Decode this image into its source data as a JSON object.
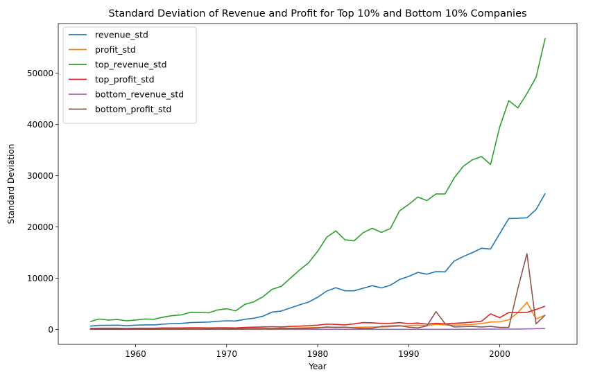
{
  "chart_data": {
    "type": "line",
    "title": "Standard Deviation of Revenue and Profit for Top 10% and Bottom 10% Companies",
    "xlabel": "Year",
    "ylabel": "Standard Deviation",
    "xlim": [
      1951.5,
      2008.5
    ],
    "ylim": [
      -2900,
      59700
    ],
    "xticks": [
      1960,
      1970,
      1980,
      1990,
      2000
    ],
    "yticks": [
      0,
      10000,
      20000,
      30000,
      40000,
      50000
    ],
    "grid": false,
    "legend_position": "top-left",
    "x": [
      1955,
      1956,
      1957,
      1958,
      1959,
      1960,
      1961,
      1962,
      1963,
      1964,
      1965,
      1966,
      1967,
      1968,
      1969,
      1970,
      1971,
      1972,
      1973,
      1974,
      1975,
      1976,
      1977,
      1978,
      1979,
      1980,
      1981,
      1982,
      1983,
      1984,
      1985,
      1986,
      1987,
      1988,
      1989,
      1990,
      1991,
      1992,
      1993,
      1994,
      1995,
      1996,
      1997,
      1998,
      1999,
      2000,
      2001,
      2002,
      2003,
      2004,
      2005
    ],
    "series": [
      {
        "name": "revenue_std",
        "color": "#1f77b4",
        "values": [
          650,
          800,
          800,
          850,
          750,
          850,
          900,
          900,
          1050,
          1150,
          1200,
          1350,
          1400,
          1450,
          1600,
          1700,
          1650,
          2000,
          2200,
          2600,
          3400,
          3600,
          4200,
          4800,
          5350,
          6300,
          7500,
          8150,
          7550,
          7550,
          8050,
          8550,
          8100,
          8650,
          9750,
          10350,
          11150,
          10800,
          11300,
          11250,
          13350,
          14250,
          15000,
          15850,
          15700,
          18700,
          21650,
          21700,
          21800,
          23400,
          26550
        ]
      },
      {
        "name": "profit_std",
        "color": "#ff7f0e",
        "values": [
          80,
          90,
          90,
          90,
          80,
          90,
          90,
          100,
          100,
          110,
          120,
          130,
          130,
          130,
          140,
          150,
          160,
          170,
          190,
          210,
          230,
          250,
          280,
          310,
          340,
          380,
          420,
          450,
          420,
          400,
          450,
          500,
          500,
          550,
          650,
          750,
          850,
          750,
          1000,
          900,
          850,
          900,
          1000,
          1150,
          1450,
          1500,
          1900,
          3300,
          5300,
          2050,
          2800
        ]
      },
      {
        "name": "top_revenue_std",
        "color": "#2ca02c",
        "values": [
          1550,
          2050,
          1850,
          1950,
          1700,
          1850,
          2050,
          2000,
          2400,
          2700,
          2850,
          3350,
          3350,
          3250,
          3800,
          4050,
          3650,
          4900,
          5400,
          6400,
          7850,
          8400,
          10000,
          11600,
          13000,
          15250,
          18000,
          19250,
          17500,
          17300,
          18900,
          19750,
          18950,
          19700,
          23150,
          24400,
          25850,
          25150,
          26450,
          26450,
          29550,
          31850,
          33100,
          33750,
          32200,
          39500,
          44650,
          43250,
          46050,
          49200,
          56850
        ]
      },
      {
        "name": "top_profit_std",
        "color": "#d62728",
        "values": [
          200,
          250,
          250,
          250,
          200,
          250,
          250,
          250,
          300,
          300,
          300,
          350,
          350,
          300,
          350,
          350,
          300,
          400,
          450,
          500,
          550,
          500,
          600,
          650,
          750,
          850,
          1050,
          1000,
          900,
          1100,
          1350,
          1300,
          1200,
          1200,
          1350,
          1150,
          1250,
          1050,
          1200,
          1100,
          1200,
          1300,
          1450,
          1600,
          3050,
          2300,
          3300,
          3300,
          3350,
          3900,
          4550
        ]
      },
      {
        "name": "bottom_revenue_std",
        "color": "#9467bd",
        "values": [
          40,
          40,
          40,
          40,
          40,
          40,
          40,
          40,
          40,
          40,
          40,
          40,
          40,
          40,
          40,
          40,
          40,
          40,
          40,
          40,
          40,
          40,
          40,
          40,
          40,
          40,
          40,
          40,
          40,
          40,
          40,
          40,
          40,
          40,
          40,
          40,
          40,
          40,
          40,
          40,
          40,
          50,
          50,
          60,
          60,
          70,
          80,
          90,
          110,
          150,
          200
        ]
      },
      {
        "name": "bottom_profit_std",
        "color": "#8c564b",
        "values": [
          50,
          60,
          60,
          60,
          50,
          60,
          60,
          60,
          70,
          70,
          80,
          90,
          90,
          90,
          100,
          100,
          110,
          120,
          130,
          150,
          170,
          190,
          200,
          220,
          250,
          300,
          500,
          380,
          450,
          300,
          200,
          250,
          600,
          700,
          750,
          450,
          300,
          700,
          3500,
          1150,
          500,
          550,
          600,
          500,
          600,
          400,
          400,
          8000,
          14800,
          1100,
          2800
        ]
      }
    ]
  }
}
